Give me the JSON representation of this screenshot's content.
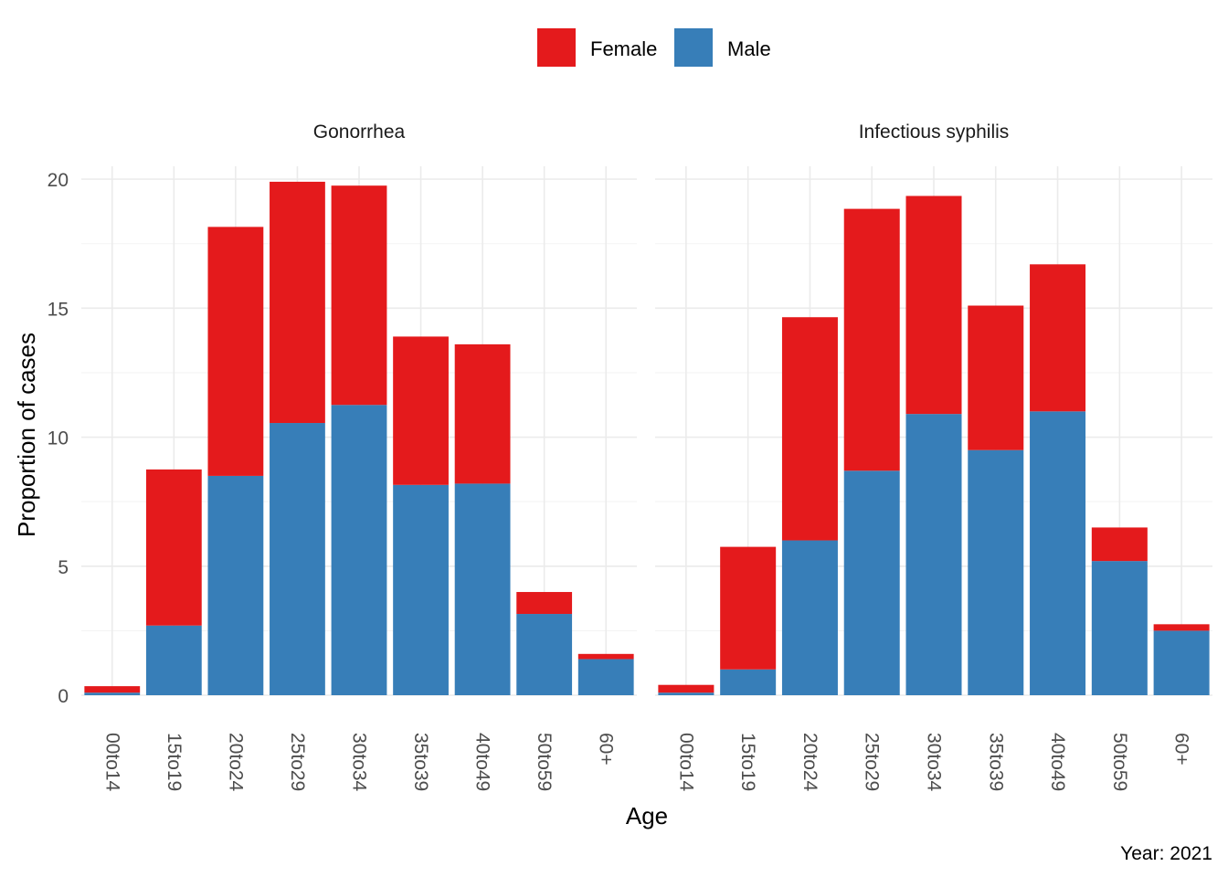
{
  "chart_data": {
    "type": "bar",
    "stacked": true,
    "categories": [
      "00to14",
      "15to19",
      "20to24",
      "25to29",
      "30to34",
      "35to39",
      "40to49",
      "50to59",
      "60+"
    ],
    "xlabel": "Age",
    "ylabel": "Proportion of cases",
    "caption": "Year: 2021",
    "ylim": [
      0,
      20.5
    ],
    "yticks": [
      0,
      5,
      10,
      15,
      20
    ],
    "grid": true,
    "legend_position": "top",
    "legend": [
      {
        "name": "Female",
        "color": "#E41A1C"
      },
      {
        "name": "Male",
        "color": "#377EB8"
      }
    ],
    "panels": [
      {
        "title": "Gonorrhea",
        "series": [
          {
            "name": "Male",
            "values": [
              0.1,
              2.7,
              8.5,
              10.55,
              11.25,
              8.15,
              8.2,
              3.15,
              1.4
            ]
          },
          {
            "name": "Female",
            "values": [
              0.25,
              6.05,
              9.65,
              9.35,
              8.5,
              5.75,
              5.4,
              0.85,
              0.2
            ]
          }
        ]
      },
      {
        "title": "Infectious syphilis",
        "series": [
          {
            "name": "Male",
            "values": [
              0.1,
              1.0,
              6.0,
              8.7,
              10.9,
              9.5,
              11.0,
              5.2,
              2.5
            ]
          },
          {
            "name": "Female",
            "values": [
              0.3,
              4.75,
              8.65,
              10.15,
              8.45,
              5.6,
              5.7,
              1.3,
              0.25
            ]
          }
        ]
      }
    ]
  }
}
